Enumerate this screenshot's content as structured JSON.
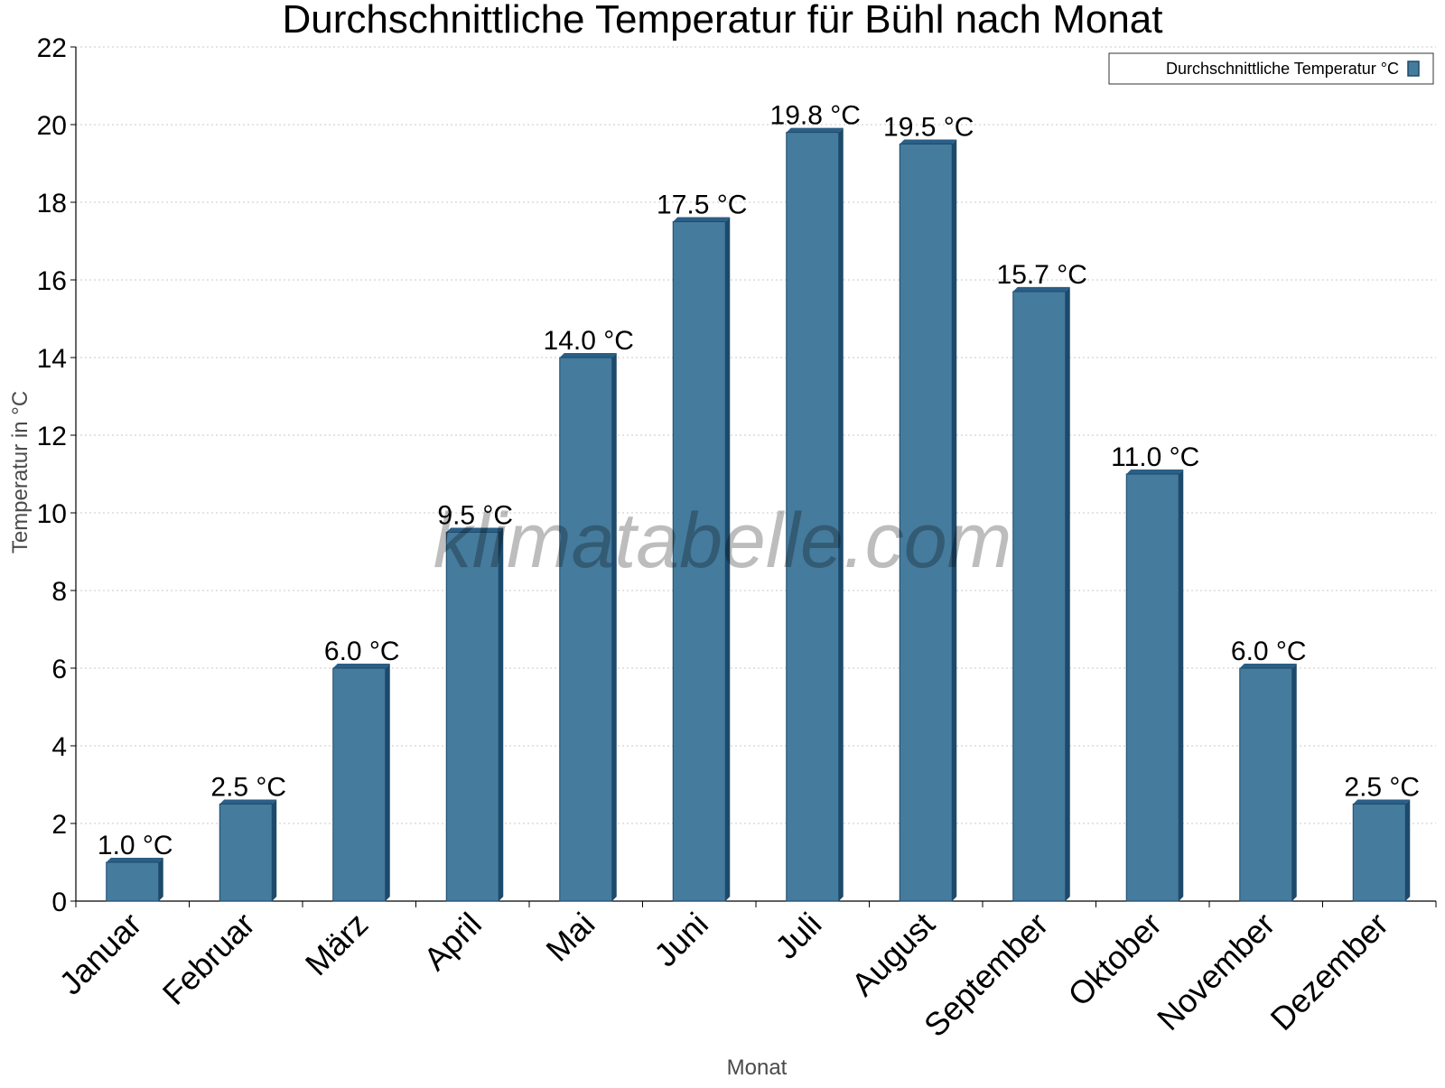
{
  "chart_data": {
    "type": "bar",
    "title": "Durchschnittliche Temperatur für Bühl nach Monat",
    "xlabel": "Monat",
    "ylabel": "Temperatur in °C",
    "categories": [
      "Januar",
      "Februar",
      "März",
      "April",
      "Mai",
      "Juni",
      "Juli",
      "August",
      "September",
      "Oktober",
      "November",
      "Dezember"
    ],
    "series": [
      {
        "name": "Durchschnittliche Temperatur °C",
        "values": [
          1.0,
          2.5,
          6.0,
          9.5,
          14.0,
          17.5,
          19.8,
          19.5,
          15.7,
          11.0,
          6.0,
          2.5
        ],
        "labels": [
          "1.0 °C",
          "2.5 °C",
          "6.0 °C",
          "9.5 °C",
          "14.0 °C",
          "17.5 °C",
          "19.8 °C",
          "19.5 °C",
          "15.7 °C",
          "11.0 °C",
          "6.0 °C",
          "2.5 °C"
        ]
      }
    ],
    "ylim": [
      0,
      22
    ],
    "yticks": [
      0,
      2,
      4,
      6,
      8,
      10,
      12,
      14,
      16,
      18,
      20,
      22
    ],
    "grid": true,
    "legend_position": "top-right",
    "colors": {
      "bar": "#457b9d",
      "bar_side": "#1d4a6b",
      "bar_top": "#2b5f86",
      "grid": "#c8c8c8",
      "axis": "#000000"
    }
  },
  "watermark": "klimatabelle.com"
}
